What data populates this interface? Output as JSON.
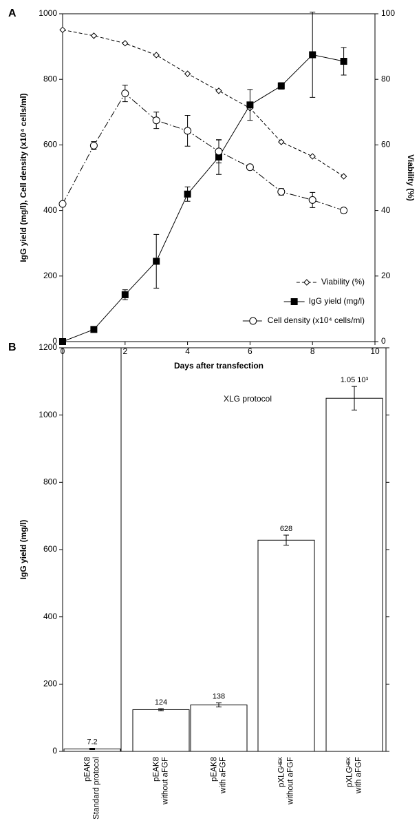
{
  "chart_data": [
    {
      "type": "line",
      "label": "A",
      "x_label": "Days after transfection",
      "y_label": "IgG yield (mg/l), Cell density (x10⁴ cells/ml)",
      "y2_label": "Viability (%)",
      "x": [
        0,
        1,
        2,
        3,
        4,
        5,
        6,
        7,
        8,
        9
      ],
      "xlim": [
        0,
        10
      ],
      "xticks": [
        0,
        2,
        4,
        6,
        8,
        10
      ],
      "ylim": [
        0,
        1000
      ],
      "yticks": [
        0,
        200,
        400,
        600,
        800,
        1000
      ],
      "y2lim": [
        0,
        100
      ],
      "y2ticks": [
        0,
        20,
        40,
        60,
        80,
        100
      ],
      "legend": "lower right",
      "series": [
        {
          "name": "Viability (%)",
          "axis": "y2",
          "marker": "diamond",
          "line_style": "dashed",
          "color": "#000000",
          "values": [
            95.1,
            93.3,
            91,
            87.4,
            81.7,
            76.5,
            71.2,
            60.9,
            56.5,
            50.4
          ]
        },
        {
          "name": "IgG yield (mg/l)",
          "marker": "square",
          "line_style": "solid",
          "color": "#000000",
          "values": [
            0,
            37,
            143,
            245,
            450,
            563,
            722,
            780,
            875,
            855
          ],
          "errors": [
            null,
            null,
            15,
            82,
            22,
            53,
            47,
            10,
            130,
            42
          ]
        },
        {
          "name": "Cell density (x10⁴ cells/ml)",
          "marker": "circle",
          "line_style": "dashdot",
          "color": "#000000",
          "values": [
            420,
            598,
            757,
            675,
            643,
            580,
            532,
            457,
            432,
            400
          ],
          "errors": [
            null,
            12,
            25,
            25,
            47,
            35,
            8,
            10,
            23,
            7
          ]
        }
      ]
    },
    {
      "type": "bar",
      "label": "B",
      "y_label": "IgG yield (mg/l)",
      "annotation": "XLG protocol",
      "categories": [
        [
          "pEAK8",
          "Standard protocol"
        ],
        [
          "pEAK8",
          "without aFGF"
        ],
        [
          "pEAK8",
          "with aFGF"
        ],
        [
          "pXLGᴴᴱᴷ",
          "without aFGF"
        ],
        [
          "pXLGᴴᴱᴷ",
          "with aFGF"
        ]
      ],
      "values": [
        7.2,
        124,
        138,
        628,
        1050
      ],
      "value_labels": [
        "7.2",
        "124",
        "138",
        "628",
        "1.05 10³"
      ],
      "errors": [
        2,
        3,
        6,
        15,
        35
      ],
      "color": "#ffffff",
      "ylim": [
        0,
        1200
      ],
      "yticks": [
        0,
        200,
        400,
        600,
        800,
        1000,
        1200
      ]
    }
  ]
}
